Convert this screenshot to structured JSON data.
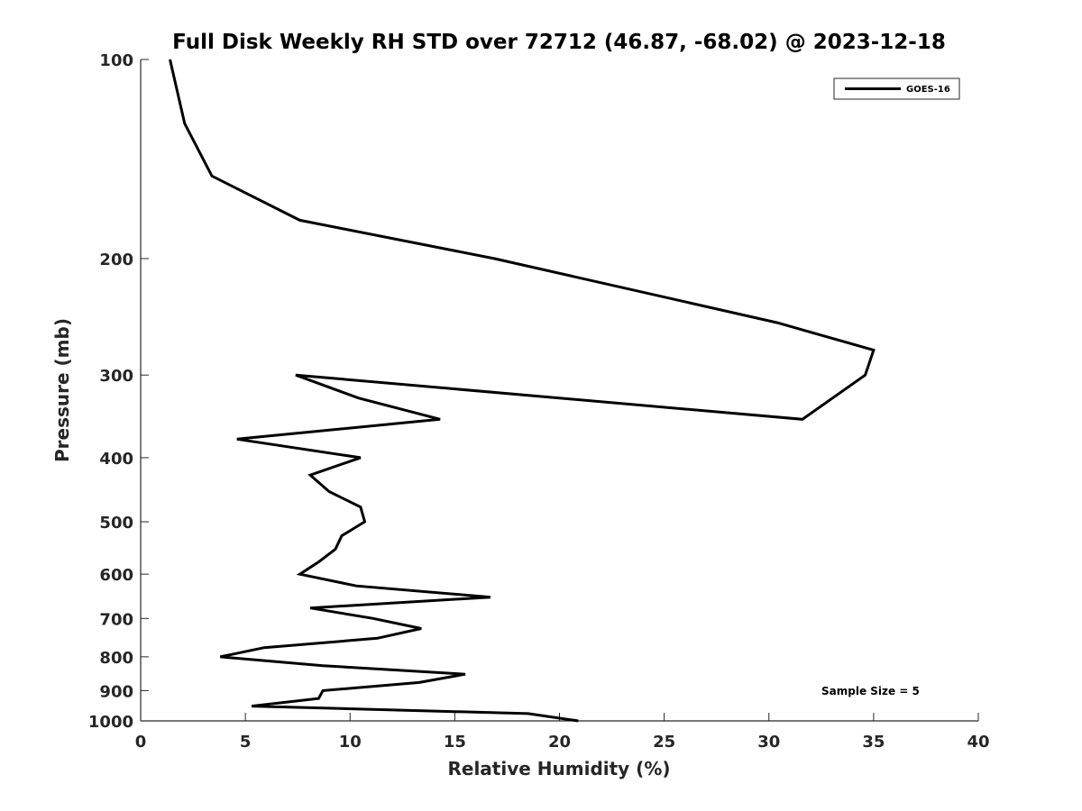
{
  "chart_data": {
    "type": "line",
    "title": "Full Disk Weekly RH STD over 72712 (46.87, -68.02) @ 2023-12-18",
    "xlabel": "Relative Humidity (%)",
    "ylabel": "Pressure (mb)",
    "xlim": [
      0,
      40
    ],
    "ylim": [
      100,
      1000
    ],
    "yscale": "log",
    "yreversed": true,
    "grid": false,
    "legend_position": "top-right",
    "x_ticks": [
      0,
      5,
      10,
      15,
      20,
      25,
      30,
      35,
      40
    ],
    "x_tick_labels": [
      "0",
      "5",
      "10",
      "15",
      "20",
      "25",
      "30",
      "35",
      "40"
    ],
    "y_ticks": [
      100,
      200,
      300,
      400,
      500,
      600,
      700,
      800,
      900,
      1000
    ],
    "y_tick_labels": [
      "100",
      "200",
      "300",
      "400",
      "500",
      "600",
      "700",
      "800",
      "900",
      "1000"
    ],
    "series": [
      {
        "name": "GOES-16",
        "color": "#000000",
        "points": [
          {
            "x": 1.4,
            "y": 100
          },
          {
            "x": 2.1,
            "y": 125
          },
          {
            "x": 3.4,
            "y": 150
          },
          {
            "x": 7.6,
            "y": 175
          },
          {
            "x": 16.9,
            "y": 200
          },
          {
            "x": 30.4,
            "y": 250
          },
          {
            "x": 35.0,
            "y": 275
          },
          {
            "x": 34.6,
            "y": 300
          },
          {
            "x": 31.6,
            "y": 350
          },
          {
            "x": 7.4,
            "y": 300
          },
          {
            "x": 10.4,
            "y": 325
          },
          {
            "x": 14.3,
            "y": 350
          },
          {
            "x": 4.6,
            "y": 375
          },
          {
            "x": 10.5,
            "y": 400
          },
          {
            "x": 8.1,
            "y": 425
          },
          {
            "x": 9.0,
            "y": 450
          },
          {
            "x": 10.5,
            "y": 475
          },
          {
            "x": 10.7,
            "y": 500
          },
          {
            "x": 9.6,
            "y": 525
          },
          {
            "x": 9.3,
            "y": 550
          },
          {
            "x": 8.5,
            "y": 575
          },
          {
            "x": 7.6,
            "y": 600
          },
          {
            "x": 10.3,
            "y": 625
          },
          {
            "x": 16.7,
            "y": 650
          },
          {
            "x": 8.1,
            "y": 675
          },
          {
            "x": 11.1,
            "y": 700
          },
          {
            "x": 13.4,
            "y": 725
          },
          {
            "x": 11.3,
            "y": 750
          },
          {
            "x": 5.9,
            "y": 775
          },
          {
            "x": 3.8,
            "y": 800
          },
          {
            "x": 8.7,
            "y": 825
          },
          {
            "x": 15.5,
            "y": 850
          },
          {
            "x": 13.3,
            "y": 875
          },
          {
            "x": 8.7,
            "y": 900
          },
          {
            "x": 8.5,
            "y": 925
          },
          {
            "x": 5.3,
            "y": 950
          },
          {
            "x": 18.5,
            "y": 975
          },
          {
            "x": 20.9,
            "y": 1000
          }
        ]
      }
    ],
    "annotation": "Sample Size = 5"
  }
}
